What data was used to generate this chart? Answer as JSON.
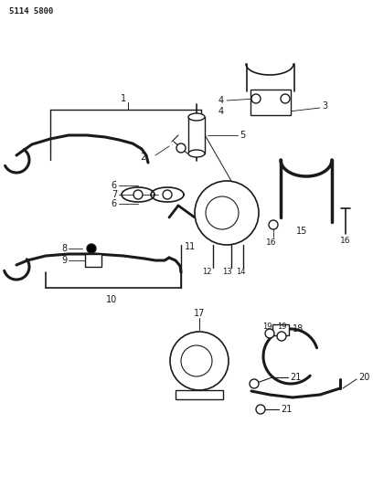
{
  "part_number": "5114 5800",
  "bg_color": "#ffffff",
  "line_color": "#1a1a1a",
  "fig_width": 4.08,
  "fig_height": 5.33,
  "dpi": 100
}
